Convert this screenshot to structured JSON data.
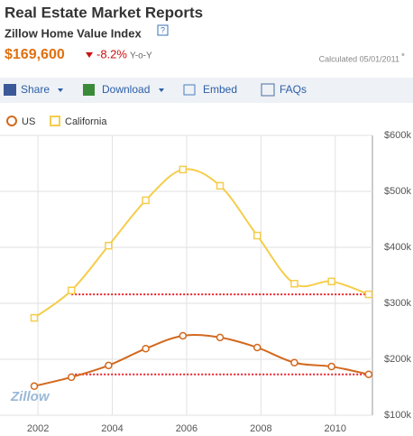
{
  "header": {
    "title": "Real Estate Market Reports",
    "subtitle": "Zillow Home Value Index",
    "help": "?",
    "price": "$169,600",
    "change": "-8.2%",
    "change_label": "Y-o-Y",
    "calculated": "Calculated 05/01/2011",
    "footnote": "*"
  },
  "toolbar": [
    "Share",
    "Download",
    "Embed",
    "FAQs"
  ],
  "logo": "Zillow",
  "chart_data": {
    "type": "line",
    "x": [
      2001.9,
      2002.9,
      2003.9,
      2004.9,
      2005.9,
      2006.9,
      2007.9,
      2008.9,
      2009.9,
      2010.9
    ],
    "series": [
      {
        "name": "US",
        "color": "#d2691e",
        "values": [
          152,
          168,
          189,
          219,
          242,
          239,
          221,
          194,
          187,
          173
        ]
      },
      {
        "name": "California",
        "color": "#f5cd4b",
        "values": [
          274,
          323,
          403,
          484,
          539,
          510,
          421,
          335,
          339,
          316
        ]
      }
    ],
    "xlim": [
      2001.1,
      2011
    ],
    "xticks": [
      2002,
      2004,
      2006,
      2008,
      2010
    ],
    "ylim": [
      100,
      600
    ],
    "yticks": [
      {
        "value": 100,
        "label": "$100k"
      },
      {
        "value": 200,
        "label": "$200k"
      },
      {
        "value": 300,
        "label": "$300k"
      },
      {
        "value": 400,
        "label": "$400k"
      },
      {
        "value": 500,
        "label": "$500k"
      },
      {
        "value": 600,
        "label": "$600k"
      }
    ],
    "grid": true,
    "reference_color": "#e8202a"
  }
}
